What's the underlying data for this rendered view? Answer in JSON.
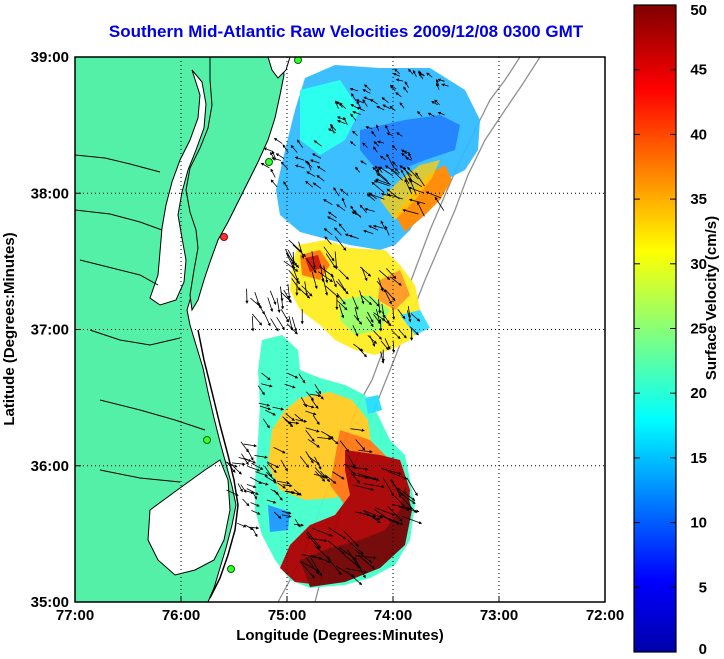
{
  "chart_data": {
    "type": "heatmap",
    "title": "Southern Mid-Atlantic Raw Velocities 2009/12/08 0300 GMT",
    "xlabel": "Longitude (Degrees:Minutes)",
    "ylabel": "Latitude (Degrees:Minutes)",
    "xlim": [
      -77,
      -72
    ],
    "ylim": [
      35,
      39
    ],
    "x_ticks": [
      {
        "value": -77,
        "label": "77:00"
      },
      {
        "value": -76,
        "label": "76:00"
      },
      {
        "value": -75,
        "label": "75:00"
      },
      {
        "value": -74,
        "label": "74:00"
      },
      {
        "value": -73,
        "label": "73:00"
      },
      {
        "value": -72,
        "label": "72:00"
      }
    ],
    "y_ticks": [
      {
        "value": 39,
        "label": "39:00"
      },
      {
        "value": 38,
        "label": "38:00"
      },
      {
        "value": 37,
        "label": "37:00"
      },
      {
        "value": 36,
        "label": "36:00"
      },
      {
        "value": 35,
        "label": "35:00"
      }
    ],
    "grid": true,
    "colorbar": {
      "label": "Surface Velocity (cm/s)",
      "min": 0,
      "max": 50,
      "ticks": [
        {
          "value": 0,
          "label": "0"
        },
        {
          "value": 5,
          "label": "5"
        },
        {
          "value": 10,
          "label": "10"
        },
        {
          "value": 15,
          "label": "15"
        },
        {
          "value": 20,
          "label": "20"
        },
        {
          "value": 25,
          "label": "25"
        },
        {
          "value": 30,
          "label": "30"
        },
        {
          "value": 35,
          "label": "35"
        },
        {
          "value": 40,
          "label": "40"
        },
        {
          "value": 45,
          "label": "45"
        },
        {
          "value": 50,
          "label": "50"
        }
      ]
    },
    "velocity_regions": [
      {
        "lon": -74.3,
        "lat": 38.6,
        "speed": 12
      },
      {
        "lon": -73.7,
        "lat": 38.7,
        "speed": 8
      },
      {
        "lon": -74.1,
        "lat": 38.3,
        "speed": 7
      },
      {
        "lon": -74.9,
        "lat": 38.2,
        "speed": 15
      },
      {
        "lon": -73.8,
        "lat": 38.0,
        "speed": 34
      },
      {
        "lon": -74.3,
        "lat": 37.8,
        "speed": 17
      },
      {
        "lon": -74.8,
        "lat": 37.5,
        "speed": 38
      },
      {
        "lon": -74.3,
        "lat": 37.3,
        "speed": 28
      },
      {
        "lon": -75.1,
        "lat": 37.2,
        "speed": 30
      },
      {
        "lon": -74.1,
        "lat": 37.0,
        "speed": 22
      },
      {
        "lon": -75.0,
        "lat": 36.5,
        "speed": 20
      },
      {
        "lon": -74.6,
        "lat": 36.1,
        "speed": 28
      },
      {
        "lon": -74.1,
        "lat": 35.8,
        "speed": 47
      },
      {
        "lon": -74.6,
        "lat": 35.4,
        "speed": 48
      },
      {
        "lon": -75.2,
        "lat": 35.7,
        "speed": 15
      },
      {
        "lon": -75.3,
        "lat": 36.0,
        "speed": 25
      }
    ]
  }
}
